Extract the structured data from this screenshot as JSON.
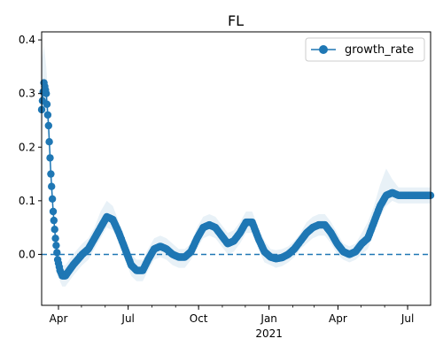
{
  "chart_data": {
    "type": "line",
    "title": "FL",
    "xlabel": "",
    "ylabel": "",
    "x_range": [
      "2020-03-10",
      "2021-07-31"
    ],
    "ylim": [
      -0.095,
      0.415
    ],
    "yticks": [
      0.0,
      0.1,
      0.2,
      0.3,
      0.4
    ],
    "ytick_labels": [
      "0.0",
      "0.1",
      "0.2",
      "0.3",
      "0.4"
    ],
    "xticks": [
      {
        "date": "2020-04-01",
        "label": "Apr",
        "sublabel": ""
      },
      {
        "date": "2020-07-01",
        "label": "Jul",
        "sublabel": ""
      },
      {
        "date": "2020-10-01",
        "label": "Oct",
        "sublabel": ""
      },
      {
        "date": "2021-01-01",
        "label": "Jan",
        "sublabel": "2021"
      },
      {
        "date": "2021-04-01",
        "label": "Apr",
        "sublabel": ""
      },
      {
        "date": "2021-07-01",
        "label": "Jul",
        "sublabel": ""
      }
    ],
    "legend_position": "top-right",
    "grid": false,
    "reference_line": {
      "y": 0.0,
      "style": "dashed"
    },
    "colors": {
      "line": "#1f77b4",
      "band": "#1f77b4",
      "band_opacity": 0.1
    },
    "series": [
      {
        "name": "growth_rate",
        "x": [
          "2020-03-10",
          "2020-03-13",
          "2020-03-16",
          "2020-03-19",
          "2020-03-22",
          "2020-03-25",
          "2020-03-28",
          "2020-03-31",
          "2020-04-03",
          "2020-04-06",
          "2020-04-10",
          "2020-04-15",
          "2020-04-20",
          "2020-04-26",
          "2020-05-02",
          "2020-05-10",
          "2020-05-18",
          "2020-05-26",
          "2020-06-03",
          "2020-06-11",
          "2020-06-19",
          "2020-06-27",
          "2020-07-05",
          "2020-07-12",
          "2020-07-20",
          "2020-07-27",
          "2020-08-04",
          "2020-08-12",
          "2020-08-20",
          "2020-08-28",
          "2020-09-05",
          "2020-09-13",
          "2020-09-21",
          "2020-09-29",
          "2020-10-07",
          "2020-10-15",
          "2020-10-23",
          "2020-10-31",
          "2020-11-08",
          "2020-11-16",
          "2020-11-24",
          "2020-12-02",
          "2020-12-10",
          "2020-12-18",
          "2020-12-26",
          "2021-01-03",
          "2021-01-10",
          "2021-01-18",
          "2021-01-26",
          "2021-02-03",
          "2021-02-11",
          "2021-02-19",
          "2021-02-27",
          "2021-03-07",
          "2021-03-15",
          "2021-03-23",
          "2021-03-31",
          "2021-04-08",
          "2021-04-16",
          "2021-04-24",
          "2021-05-02",
          "2021-05-10",
          "2021-05-18",
          "2021-05-26",
          "2021-06-03",
          "2021-06-11",
          "2021-06-19",
          "2021-06-27",
          "2021-07-02",
          "2021-07-07",
          "2021-07-14",
          "2021-07-22",
          "2021-07-31"
        ],
        "values": [
          0.27,
          0.32,
          0.3,
          0.24,
          0.15,
          0.08,
          0.03,
          -0.01,
          -0.03,
          -0.04,
          -0.04,
          -0.03,
          -0.02,
          -0.01,
          0.0,
          0.01,
          0.03,
          0.05,
          0.07,
          0.065,
          0.04,
          0.01,
          -0.02,
          -0.03,
          -0.03,
          -0.01,
          0.01,
          0.015,
          0.01,
          0.0,
          -0.005,
          -0.005,
          0.005,
          0.03,
          0.05,
          0.055,
          0.05,
          0.035,
          0.02,
          0.025,
          0.04,
          0.06,
          0.06,
          0.03,
          0.005,
          -0.005,
          -0.008,
          -0.006,
          0.0,
          0.01,
          0.025,
          0.04,
          0.05,
          0.055,
          0.055,
          0.04,
          0.02,
          0.005,
          0.0,
          0.005,
          0.02,
          0.03,
          0.06,
          0.09,
          0.11,
          0.115,
          0.11,
          0.11,
          0.11,
          0.11,
          0.11,
          0.11,
          0.11
        ],
        "band_upper": [
          0.36,
          0.39,
          0.35,
          0.28,
          0.18,
          0.1,
          0.05,
          0.01,
          -0.01,
          -0.02,
          -0.02,
          -0.01,
          0.0,
          0.01,
          0.02,
          0.03,
          0.05,
          0.08,
          0.1,
          0.09,
          0.06,
          0.03,
          0.0,
          -0.01,
          -0.01,
          0.01,
          0.03,
          0.035,
          0.03,
          0.02,
          0.01,
          0.01,
          0.02,
          0.05,
          0.07,
          0.075,
          0.07,
          0.055,
          0.04,
          0.045,
          0.06,
          0.08,
          0.08,
          0.05,
          0.025,
          0.01,
          0.008,
          0.01,
          0.015,
          0.025,
          0.04,
          0.06,
          0.07,
          0.075,
          0.075,
          0.06,
          0.04,
          0.02,
          0.015,
          0.02,
          0.04,
          0.06,
          0.09,
          0.13,
          0.16,
          0.14,
          0.125,
          0.125,
          0.125,
          0.125,
          0.125,
          0.125,
          0.125
        ],
        "band_lower": [
          0.22,
          0.27,
          0.26,
          0.21,
          0.12,
          0.06,
          0.01,
          -0.03,
          -0.05,
          -0.06,
          -0.06,
          -0.05,
          -0.04,
          -0.03,
          -0.02,
          -0.01,
          0.01,
          0.03,
          0.05,
          0.045,
          0.02,
          -0.01,
          -0.04,
          -0.05,
          -0.05,
          -0.03,
          -0.01,
          -0.005,
          -0.01,
          -0.02,
          -0.025,
          -0.025,
          -0.01,
          0.01,
          0.03,
          0.035,
          0.03,
          0.015,
          0.0,
          0.005,
          0.02,
          0.04,
          0.04,
          0.01,
          -0.015,
          -0.02,
          -0.025,
          -0.022,
          -0.015,
          -0.005,
          0.01,
          0.02,
          0.03,
          0.035,
          0.035,
          0.02,
          0.0,
          -0.01,
          -0.015,
          -0.01,
          0.0,
          0.01,
          0.04,
          0.07,
          0.09,
          0.1,
          0.095,
          0.095,
          0.095,
          0.095,
          0.095,
          0.095,
          0.095
        ]
      }
    ]
  }
}
